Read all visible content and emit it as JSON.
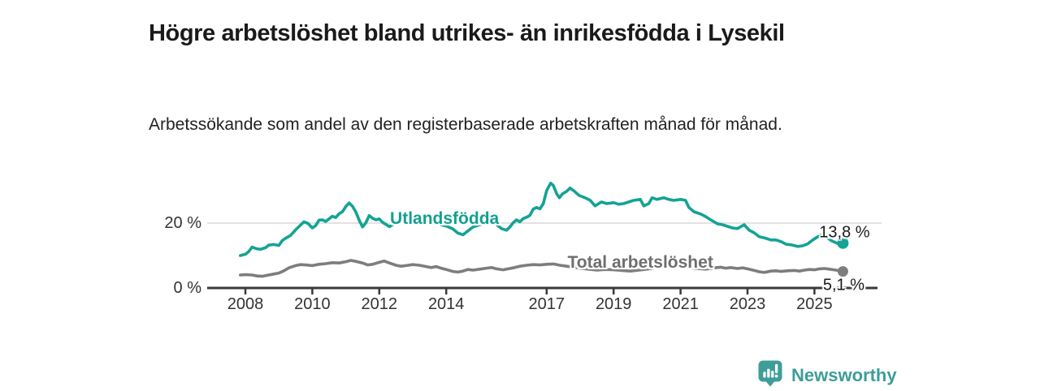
{
  "title": "Högre arbetslöshet bland utrikes- än inrikesfödda i Lysekil",
  "subtitle": "Arbetssökande som andel av den registerbaserade arbetskraften månad för månad.",
  "footer": {
    "brand": "Newsworthy"
  },
  "colors": {
    "foreign_born_line": "#14a394",
    "total_line": "#7d7d7d",
    "foreign_born_label": "#12a090",
    "total_label": "#6e6e6e",
    "axis": "#3a3a3a",
    "gridline": "#d9d9d9",
    "tick_text": "#333333",
    "value_text": "#1a1a1a",
    "brand_teal": "#3d9e99"
  },
  "chart_data": {
    "type": "line",
    "title": "Högre arbetslöshet bland utrikes- än inrikesfödda i Lysekil",
    "subtitle": "Arbetssökande som andel av den registerbaserade arbetskraften månad för månad.",
    "grid": "horizontal-only",
    "legend": "inline-labels",
    "x_axis": {
      "min": 2007.85,
      "max": 2026.2,
      "ticks": [
        2008,
        2010,
        2012,
        2014,
        2017,
        2019,
        2021,
        2023,
        2025
      ]
    },
    "y_axis": {
      "min": 0,
      "max": 34,
      "ticks": [
        {
          "value": 0,
          "label": "0 %"
        },
        {
          "value": 20,
          "label": "20 %"
        }
      ],
      "gridlines": [
        20
      ]
    },
    "series": [
      {
        "name": "Utlandsfödda",
        "color": "#14a394",
        "label_color": "#12a090",
        "inline_label": {
          "text": "Utlandsfödda",
          "x": 2013.95,
          "y": 21.3
        },
        "end_value": 13.8,
        "end_label": "13,8 %",
        "end_label_side": "above",
        "points": [
          [
            2007.85,
            10.0
          ],
          [
            2008.0,
            10.4
          ],
          [
            2008.1,
            11.2
          ],
          [
            2008.2,
            12.6
          ],
          [
            2008.33,
            12.1
          ],
          [
            2008.45,
            11.9
          ],
          [
            2008.6,
            12.4
          ],
          [
            2008.7,
            13.2
          ],
          [
            2008.85,
            13.4
          ],
          [
            2009.0,
            13.1
          ],
          [
            2009.1,
            14.6
          ],
          [
            2009.2,
            15.3
          ],
          [
            2009.35,
            16.2
          ],
          [
            2009.5,
            17.9
          ],
          [
            2009.62,
            19.1
          ],
          [
            2009.75,
            20.4
          ],
          [
            2009.87,
            19.9
          ],
          [
            2010.0,
            18.5
          ],
          [
            2010.1,
            19.2
          ],
          [
            2010.2,
            20.9
          ],
          [
            2010.3,
            21.0
          ],
          [
            2010.4,
            20.5
          ],
          [
            2010.5,
            21.3
          ],
          [
            2010.6,
            22.1
          ],
          [
            2010.7,
            21.7
          ],
          [
            2010.8,
            22.9
          ],
          [
            2010.9,
            23.5
          ],
          [
            2011.0,
            25.1
          ],
          [
            2011.1,
            26.2
          ],
          [
            2011.2,
            25.2
          ],
          [
            2011.3,
            23.4
          ],
          [
            2011.4,
            20.9
          ],
          [
            2011.5,
            18.8
          ],
          [
            2011.6,
            20.1
          ],
          [
            2011.7,
            22.3
          ],
          [
            2011.8,
            21.5
          ],
          [
            2011.9,
            21.0
          ],
          [
            2012.0,
            21.3
          ],
          [
            2012.1,
            20.2
          ],
          [
            2012.2,
            19.6
          ],
          [
            2012.3,
            18.9
          ],
          [
            2012.4,
            19.5
          ],
          [
            2012.5,
            19.9
          ],
          [
            2012.6,
            20.5
          ],
          [
            2012.7,
            20.6
          ],
          [
            2012.8,
            20.2
          ],
          [
            2012.9,
            20.7
          ],
          [
            2013.0,
            20.5
          ],
          [
            2013.2,
            20.9
          ],
          [
            2013.35,
            21.1
          ],
          [
            2013.5,
            20.6
          ],
          [
            2013.7,
            20.1
          ],
          [
            2013.85,
            19.5
          ],
          [
            2014.0,
            19.1
          ],
          [
            2014.2,
            18.2
          ],
          [
            2014.35,
            16.9
          ],
          [
            2014.5,
            16.4
          ],
          [
            2014.65,
            17.6
          ],
          [
            2014.8,
            18.8
          ],
          [
            2015.0,
            19.5
          ],
          [
            2015.2,
            20.0
          ],
          [
            2015.35,
            20.3
          ],
          [
            2015.5,
            19.6
          ],
          [
            2015.65,
            18.3
          ],
          [
            2015.8,
            17.8
          ],
          [
            2015.9,
            18.8
          ],
          [
            2016.0,
            20.1
          ],
          [
            2016.1,
            21.0
          ],
          [
            2016.2,
            20.4
          ],
          [
            2016.3,
            21.4
          ],
          [
            2016.42,
            21.9
          ],
          [
            2016.5,
            22.4
          ],
          [
            2016.6,
            24.3
          ],
          [
            2016.7,
            24.8
          ],
          [
            2016.8,
            24.4
          ],
          [
            2016.9,
            26.0
          ],
          [
            2017.0,
            30.0
          ],
          [
            2017.12,
            32.3
          ],
          [
            2017.2,
            31.6
          ],
          [
            2017.3,
            29.0
          ],
          [
            2017.38,
            27.8
          ],
          [
            2017.47,
            29.0
          ],
          [
            2017.6,
            29.8
          ],
          [
            2017.7,
            30.8
          ],
          [
            2017.83,
            29.8
          ],
          [
            2017.97,
            28.5
          ],
          [
            2018.15,
            27.8
          ],
          [
            2018.3,
            27.0
          ],
          [
            2018.45,
            25.3
          ],
          [
            2018.63,
            26.5
          ],
          [
            2018.8,
            26.0
          ],
          [
            2019.0,
            26.3
          ],
          [
            2019.15,
            25.8
          ],
          [
            2019.3,
            26.0
          ],
          [
            2019.45,
            26.5
          ],
          [
            2019.6,
            27.0
          ],
          [
            2019.8,
            27.3
          ],
          [
            2019.9,
            25.3
          ],
          [
            2020.05,
            26.0
          ],
          [
            2020.15,
            27.8
          ],
          [
            2020.3,
            27.3
          ],
          [
            2020.5,
            27.8
          ],
          [
            2020.65,
            27.3
          ],
          [
            2020.8,
            27.0
          ],
          [
            2021.0,
            27.3
          ],
          [
            2021.15,
            27.0
          ],
          [
            2021.25,
            24.8
          ],
          [
            2021.4,
            23.5
          ],
          [
            2021.6,
            22.8
          ],
          [
            2021.75,
            22.0
          ],
          [
            2021.9,
            21.0
          ],
          [
            2022.1,
            19.8
          ],
          [
            2022.25,
            19.5
          ],
          [
            2022.4,
            19.0
          ],
          [
            2022.55,
            18.5
          ],
          [
            2022.7,
            18.3
          ],
          [
            2022.9,
            19.5
          ],
          [
            2023.05,
            17.8
          ],
          [
            2023.2,
            17.0
          ],
          [
            2023.35,
            15.8
          ],
          [
            2023.55,
            15.3
          ],
          [
            2023.7,
            14.8
          ],
          [
            2023.85,
            14.8
          ],
          [
            2024.0,
            14.3
          ],
          [
            2024.15,
            13.5
          ],
          [
            2024.3,
            13.3
          ],
          [
            2024.5,
            12.8
          ],
          [
            2024.65,
            13.0
          ],
          [
            2024.8,
            13.6
          ],
          [
            2024.95,
            14.8
          ],
          [
            2025.1,
            15.8
          ],
          [
            2025.2,
            16.3
          ],
          [
            2025.35,
            15.8
          ],
          [
            2025.5,
            14.6
          ],
          [
            2025.65,
            13.9
          ],
          [
            2025.75,
            13.5
          ],
          [
            2025.85,
            13.8
          ]
        ]
      },
      {
        "name": "Total arbetslöshet",
        "color": "#7d7d7d",
        "label_color": "#6e6e6e",
        "inline_label": {
          "text": "Total arbetslöshet",
          "x": 2019.8,
          "y": 7.8
        },
        "end_value": 5.1,
        "end_label": "5,1 %",
        "end_label_side": "below",
        "points": [
          [
            2007.85,
            4.0
          ],
          [
            2008.0,
            4.1
          ],
          [
            2008.2,
            4.0
          ],
          [
            2008.35,
            3.7
          ],
          [
            2008.5,
            3.6
          ],
          [
            2008.65,
            3.9
          ],
          [
            2008.8,
            4.2
          ],
          [
            2009.0,
            4.6
          ],
          [
            2009.15,
            5.3
          ],
          [
            2009.3,
            6.2
          ],
          [
            2009.5,
            6.9
          ],
          [
            2009.65,
            7.2
          ],
          [
            2009.8,
            7.1
          ],
          [
            2010.0,
            6.9
          ],
          [
            2010.2,
            7.3
          ],
          [
            2010.4,
            7.5
          ],
          [
            2010.6,
            7.8
          ],
          [
            2010.8,
            7.7
          ],
          [
            2011.0,
            8.1
          ],
          [
            2011.15,
            8.5
          ],
          [
            2011.3,
            8.2
          ],
          [
            2011.5,
            7.7
          ],
          [
            2011.65,
            7.1
          ],
          [
            2011.8,
            7.3
          ],
          [
            2012.0,
            7.9
          ],
          [
            2012.15,
            8.3
          ],
          [
            2012.3,
            7.7
          ],
          [
            2012.5,
            7.0
          ],
          [
            2012.65,
            6.7
          ],
          [
            2012.8,
            6.9
          ],
          [
            2013.0,
            7.2
          ],
          [
            2013.2,
            7.0
          ],
          [
            2013.4,
            6.6
          ],
          [
            2013.55,
            6.3
          ],
          [
            2013.7,
            6.6
          ],
          [
            2013.85,
            6.1
          ],
          [
            2014.0,
            5.7
          ],
          [
            2014.2,
            5.1
          ],
          [
            2014.35,
            4.9
          ],
          [
            2014.5,
            5.2
          ],
          [
            2014.65,
            5.7
          ],
          [
            2014.8,
            5.5
          ],
          [
            2015.0,
            5.8
          ],
          [
            2015.2,
            6.1
          ],
          [
            2015.35,
            6.3
          ],
          [
            2015.5,
            5.9
          ],
          [
            2015.7,
            5.6
          ],
          [
            2015.85,
            5.9
          ],
          [
            2016.0,
            6.2
          ],
          [
            2016.2,
            6.7
          ],
          [
            2016.4,
            7.0
          ],
          [
            2016.6,
            7.2
          ],
          [
            2016.8,
            7.1
          ],
          [
            2017.0,
            7.3
          ],
          [
            2017.2,
            7.4
          ],
          [
            2017.4,
            7.0
          ],
          [
            2017.6,
            6.7
          ],
          [
            2017.8,
            6.4
          ],
          [
            2018.0,
            6.1
          ],
          [
            2018.25,
            5.8
          ],
          [
            2018.5,
            5.5
          ],
          [
            2018.75,
            5.7
          ],
          [
            2019.0,
            5.6
          ],
          [
            2019.25,
            5.4
          ],
          [
            2019.5,
            5.2
          ],
          [
            2019.75,
            5.5
          ],
          [
            2020.0,
            5.8
          ],
          [
            2020.25,
            6.3
          ],
          [
            2020.5,
            6.5
          ],
          [
            2020.75,
            6.4
          ],
          [
            2021.0,
            6.5
          ],
          [
            2021.25,
            6.3
          ],
          [
            2021.5,
            6.0
          ],
          [
            2021.75,
            5.8
          ],
          [
            2022.0,
            6.2
          ],
          [
            2022.2,
            6.4
          ],
          [
            2022.35,
            6.1
          ],
          [
            2022.5,
            6.3
          ],
          [
            2022.7,
            6.0
          ],
          [
            2022.85,
            6.2
          ],
          [
            2023.0,
            5.9
          ],
          [
            2023.2,
            5.4
          ],
          [
            2023.35,
            5.0
          ],
          [
            2023.5,
            4.8
          ],
          [
            2023.7,
            5.2
          ],
          [
            2023.85,
            5.3
          ],
          [
            2024.0,
            5.1
          ],
          [
            2024.2,
            5.3
          ],
          [
            2024.4,
            5.4
          ],
          [
            2024.55,
            5.2
          ],
          [
            2024.7,
            5.5
          ],
          [
            2024.85,
            5.7
          ],
          [
            2025.0,
            5.6
          ],
          [
            2025.15,
            5.9
          ],
          [
            2025.3,
            6.0
          ],
          [
            2025.45,
            5.8
          ],
          [
            2025.65,
            5.5
          ],
          [
            2025.85,
            5.1
          ]
        ]
      }
    ]
  }
}
